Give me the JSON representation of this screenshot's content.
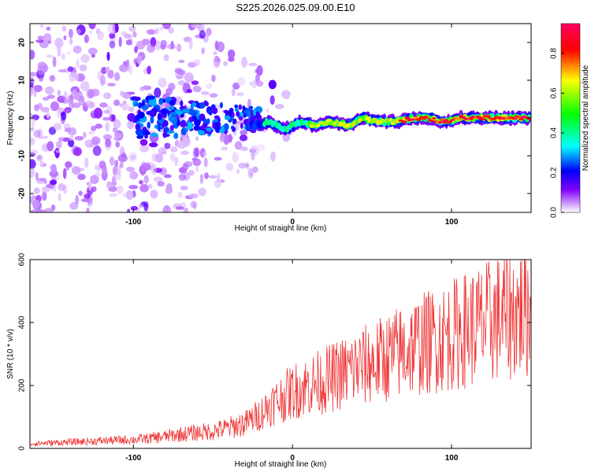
{
  "title": "S225.2026.025.09.00.E10",
  "colors": {
    "signal_line": "#ee3333",
    "noise": "#7a33ee",
    "colormap": [
      "#ffffff",
      "#8000ff",
      "#0000ff",
      "#00ffff",
      "#00ff00",
      "#ffff00",
      "#ff0000",
      "#ff0040"
    ]
  },
  "chart_data": [
    {
      "type": "heatmap",
      "title": "S225.2026.025.09.00.E10",
      "xlabel": "Height of straight line (km)",
      "ylabel": "Frequency (Hz)",
      "xlim": [
        -165,
        150
      ],
      "ylim": [
        -25,
        25
      ],
      "xticks": [
        "-100",
        "0",
        "100"
      ],
      "yticks": [
        "-20",
        "-10",
        "0",
        "10",
        "20"
      ],
      "grid": false,
      "colorbar": {
        "label": "Normalized spectral amplitude",
        "range": [
          0.0,
          0.95
        ],
        "ticks": [
          "0.0",
          "0.2",
          "0.4",
          "0.6",
          "0.8"
        ]
      },
      "signal_ridge": {
        "x": [
          -25,
          -15,
          -5,
          5,
          15,
          25,
          35,
          45,
          55,
          65,
          75,
          85,
          95,
          105,
          115,
          125,
          135,
          145,
          150
        ],
        "frequency": [
          -2,
          -1,
          -3,
          -1,
          -2,
          -1,
          -2,
          0,
          -1,
          -1,
          0,
          0,
          -1,
          0,
          0,
          0,
          0,
          0,
          0
        ],
        "peak_amplitude": [
          0.35,
          0.4,
          0.45,
          0.55,
          0.6,
          0.65,
          0.7,
          0.75,
          0.8,
          0.8,
          0.85,
          0.85,
          0.85,
          0.9,
          0.9,
          0.9,
          0.92,
          0.95,
          0.95
        ]
      }
    },
    {
      "type": "line",
      "xlabel": "Height of straight line (km)",
      "ylabel": "SNR (10 * v/v)",
      "xlim": [
        -165,
        150
      ],
      "ylim": [
        0,
        600
      ],
      "xticks": [
        "-100",
        "0",
        "100"
      ],
      "yticks": [
        "0",
        "200",
        "400",
        "600"
      ],
      "grid": false,
      "series": [
        {
          "x": [
            -165,
            -150,
            -140,
            -130,
            -120,
            -110,
            -100,
            -90,
            -80,
            -70,
            -60,
            -50,
            -40,
            -30,
            -20,
            -15,
            -10,
            -5,
            0,
            10,
            20,
            30,
            40,
            50,
            60,
            70,
            80,
            90,
            100,
            110,
            120,
            130,
            140,
            150
          ],
          "values": [
            15,
            18,
            20,
            22,
            24,
            26,
            28,
            32,
            38,
            45,
            50,
            55,
            65,
            80,
            110,
            135,
            150,
            165,
            180,
            200,
            215,
            235,
            255,
            270,
            290,
            310,
            330,
            345,
            360,
            380,
            395,
            415,
            430,
            440
          ]
        }
      ]
    }
  ]
}
